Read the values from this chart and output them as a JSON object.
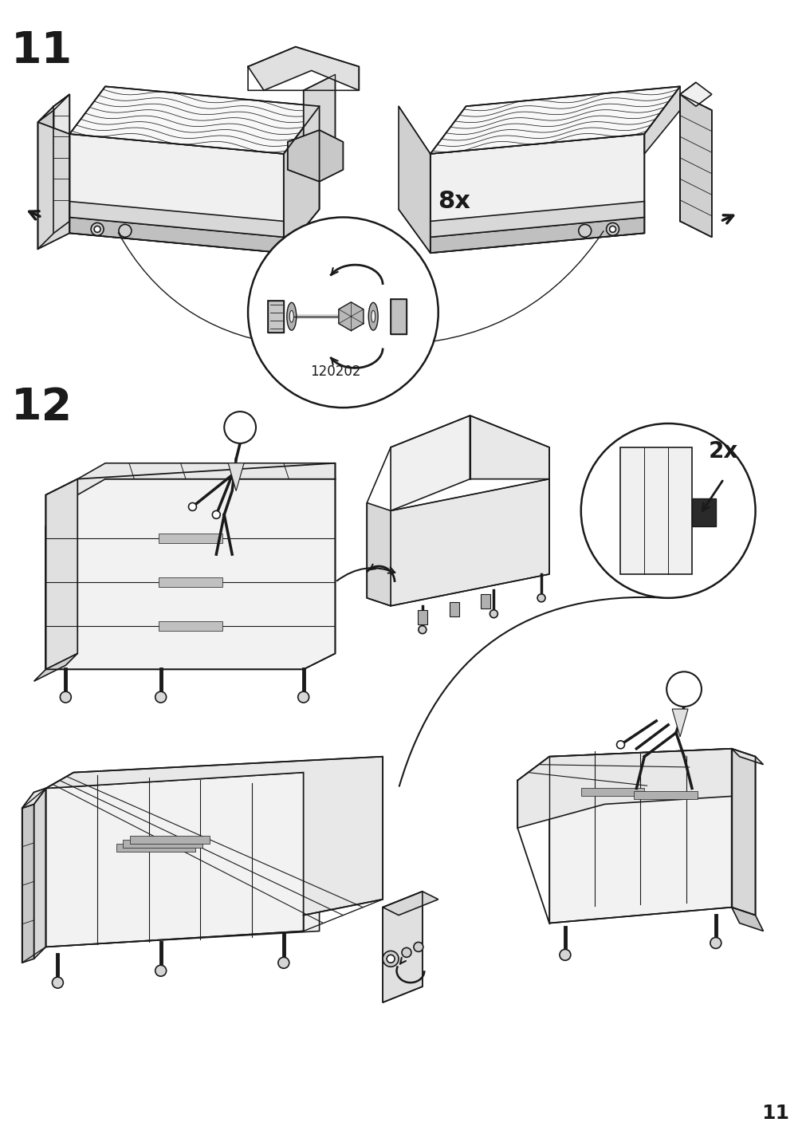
{
  "background_color": "#ffffff",
  "page_number": "11",
  "step11_label": "11",
  "step12_label": "12",
  "step11_count": "8x",
  "step12_count": "2x",
  "part_number": "120202",
  "line_color": "#1a1a1a",
  "fill_light": "#f5f5f5",
  "fill_white": "#ffffff",
  "fill_gray": "#d8d8d8",
  "fill_dark": "#b0b0b0",
  "figsize": [
    10.12,
    14.32
  ],
  "dpi": 100
}
